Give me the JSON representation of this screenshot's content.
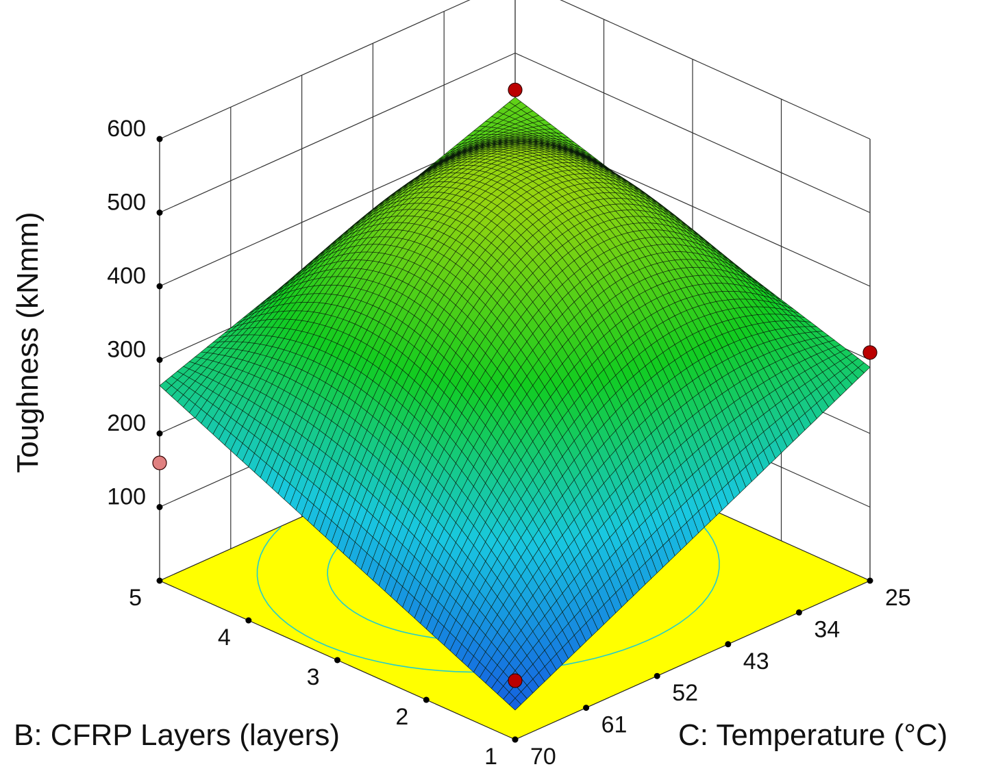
{
  "chart_data": {
    "type": "surface3d",
    "zlabel": "Toughness (kNmm)",
    "blabel": "B: CFRP Layers (layers)",
    "clabel": "C: Temperature (°C)",
    "b_ticks": [
      "1",
      "2",
      "3",
      "4",
      "5"
    ],
    "c_ticks": [
      "25",
      "34",
      "43",
      "52",
      "61",
      "70"
    ],
    "z_ticks": [
      "100",
      "200",
      "300",
      "400",
      "500",
      "600"
    ],
    "b_range": [
      1,
      5
    ],
    "c_range": [
      25,
      70
    ],
    "z_range": [
      0,
      600
    ],
    "surface": {
      "grid_b": [
        1,
        2,
        3,
        4,
        5
      ],
      "grid_c": [
        25,
        34,
        43,
        52,
        61,
        70
      ],
      "corner_values": {
        "b1_c25": 290,
        "b5_c25": 440,
        "b5_c70": 265,
        "b1_c70": 40
      },
      "peak": {
        "b": 3.3,
        "c": 47.5,
        "z": 500
      }
    },
    "design_points": [
      {
        "b": 5,
        "c": 70,
        "z": 160
      },
      {
        "b": 5,
        "c": 25,
        "z": 450
      },
      {
        "b": 1,
        "c": 25,
        "z": 310
      },
      {
        "b": 1,
        "c": 70,
        "z": 80
      }
    ],
    "floor_color": "#ffff00",
    "contour_color": "#22cccc",
    "point_color": "#bb0000",
    "point_color_below": "#e08080",
    "colormap": [
      "#1560e0",
      "#19c8e0",
      "#12cc20",
      "#95d410"
    ]
  }
}
